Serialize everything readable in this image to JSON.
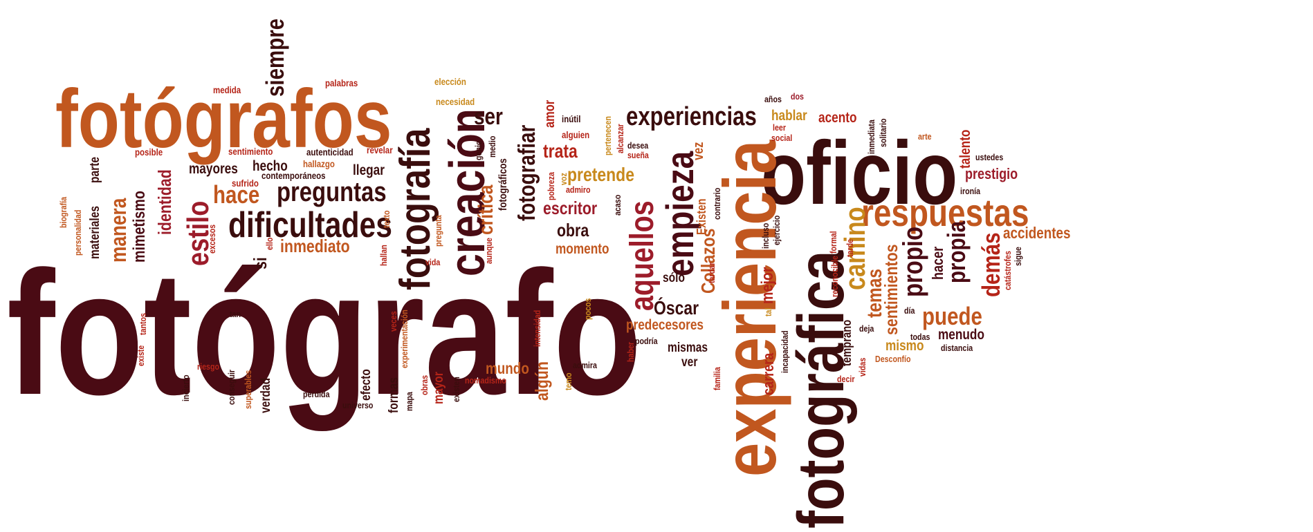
{
  "palette": {
    "dark_maroon": "#4a0b14",
    "brown": "#3a0d0d",
    "burnt_orange": "#c1571f",
    "red": "#b52418",
    "gold": "#c8891c",
    "dark_red": "#7a1a1a",
    "crimson": "#9c1c2a"
  },
  "words": [
    {
      "text": "fotógrafo",
      "color": "dark_maroon"
    },
    {
      "text": "fotógrafos",
      "color": "burnt_orange"
    },
    {
      "text": "oficio",
      "color": "brown"
    },
    {
      "text": "experiencia",
      "color": "burnt_orange"
    },
    {
      "text": "fotográfica",
      "color": "brown"
    },
    {
      "text": "fotografía",
      "color": "brown"
    },
    {
      "text": "creación",
      "color": "dark_maroon"
    },
    {
      "text": "respuestas",
      "color": "burnt_orange"
    },
    {
      "text": "dificultades",
      "color": "brown"
    },
    {
      "text": "empieza",
      "color": "dark_maroon"
    },
    {
      "text": "aquellos",
      "color": "crimson"
    },
    {
      "text": "experiencias",
      "color": "brown"
    },
    {
      "text": "preguntas",
      "color": "brown"
    },
    {
      "text": "siempre",
      "color": "brown"
    },
    {
      "text": "estilo",
      "color": "crimson"
    },
    {
      "text": "camino",
      "color": "gold"
    },
    {
      "text": "propio",
      "color": "dark_maroon"
    },
    {
      "text": "propia",
      "color": "dark_maroon"
    },
    {
      "text": "demás",
      "color": "red"
    },
    {
      "text": "puede",
      "color": "burnt_orange"
    },
    {
      "text": "manera",
      "color": "burnt_orange"
    },
    {
      "text": "hace",
      "color": "burnt_orange"
    },
    {
      "text": "inmediato",
      "color": "burnt_orange"
    },
    {
      "text": "ser",
      "color": "brown"
    },
    {
      "text": "fotografiar",
      "color": "brown"
    },
    {
      "text": "crítica",
      "color": "burnt_orange"
    },
    {
      "text": "identidad",
      "color": "crimson"
    },
    {
      "text": "mimetismo",
      "color": "dark_maroon"
    },
    {
      "text": "Óscar",
      "color": "brown"
    },
    {
      "text": "Collazos",
      "color": "burnt_orange"
    },
    {
      "text": "escritor",
      "color": "crimson"
    },
    {
      "text": "pretende",
      "color": "gold"
    },
    {
      "text": "obra",
      "color": "brown"
    },
    {
      "text": "trata",
      "color": "red"
    },
    {
      "text": "momento",
      "color": "burnt_orange"
    },
    {
      "text": "predecesores",
      "color": "burnt_orange"
    },
    {
      "text": "sentimientos",
      "color": "burnt_orange"
    },
    {
      "text": "temas",
      "color": "burnt_orange"
    },
    {
      "text": "hablar",
      "color": "gold"
    },
    {
      "text": "acento",
      "color": "red"
    },
    {
      "text": "prestigio",
      "color": "crimson"
    },
    {
      "text": "accidentes",
      "color": "burnt_orange"
    },
    {
      "text": "algún",
      "color": "burnt_orange"
    },
    {
      "text": "mundo",
      "color": "burnt_orange"
    },
    {
      "text": "mejor",
      "color": "red"
    },
    {
      "text": "carrera",
      "color": "red"
    },
    {
      "text": "menudo",
      "color": "dark_maroon"
    },
    {
      "text": "mismo",
      "color": "gold"
    },
    {
      "text": "vez",
      "color": "burnt_orange"
    },
    {
      "text": "hacer",
      "color": "dark_maroon"
    },
    {
      "text": "talento",
      "color": "red"
    },
    {
      "text": "mayores",
      "color": "brown"
    },
    {
      "text": "hecho",
      "color": "brown"
    },
    {
      "text": "llegar",
      "color": "brown"
    },
    {
      "text": "si",
      "color": "brown"
    },
    {
      "text": "materiales",
      "color": "brown"
    },
    {
      "text": "parte",
      "color": "brown"
    },
    {
      "text": "amor",
      "color": "red"
    },
    {
      "text": "mismas",
      "color": "brown"
    },
    {
      "text": "ver",
      "color": "brown"
    },
    {
      "text": "sólo",
      "color": "brown"
    },
    {
      "text": "Existen",
      "color": "burnt_orange"
    },
    {
      "text": "formas",
      "color": "brown"
    },
    {
      "text": "mayor",
      "color": "red"
    },
    {
      "text": "efecto",
      "color": "brown"
    },
    {
      "text": "verdad",
      "color": "brown"
    },
    {
      "text": "temprano",
      "color": "brown"
    },
    {
      "text": "fotográficos",
      "color": "brown"
    },
    {
      "text": "medida",
      "color": "red"
    },
    {
      "text": "palabras",
      "color": "red"
    },
    {
      "text": "elección",
      "color": "gold"
    },
    {
      "text": "necesidad",
      "color": "gold"
    },
    {
      "text": "inútil",
      "color": "brown"
    },
    {
      "text": "alguien",
      "color": "red"
    },
    {
      "text": "posible",
      "color": "red"
    },
    {
      "text": "sentimiento",
      "color": "red"
    },
    {
      "text": "autenticidad",
      "color": "brown"
    },
    {
      "text": "revelar",
      "color": "red"
    },
    {
      "text": "genio",
      "color": "brown"
    },
    {
      "text": "medio",
      "color": "brown"
    },
    {
      "text": "hallazgo",
      "color": "burnt_orange"
    },
    {
      "text": "contemporáneos",
      "color": "brown"
    },
    {
      "text": "sufrido",
      "color": "red"
    },
    {
      "text": "biografía",
      "color": "burnt_orange"
    },
    {
      "text": "personalidad",
      "color": "burnt_orange"
    },
    {
      "text": "excesos",
      "color": "red"
    },
    {
      "text": "ello",
      "color": "red"
    },
    {
      "text": "texto",
      "color": "burnt_orange"
    },
    {
      "text": "hallan",
      "color": "red"
    },
    {
      "text": "vida",
      "color": "red"
    },
    {
      "text": "pregunta",
      "color": "burnt_orange"
    },
    {
      "text": "aunque",
      "color": "red"
    },
    {
      "text": "pobreza",
      "color": "red"
    },
    {
      "text": "voz",
      "color": "gold"
    },
    {
      "text": "admiro",
      "color": "red"
    },
    {
      "text": "acaso",
      "color": "brown"
    },
    {
      "text": "pertenecen",
      "color": "gold"
    },
    {
      "text": "alcanzar",
      "color": "red"
    },
    {
      "text": "desea",
      "color": "brown"
    },
    {
      "text": "sueña",
      "color": "red"
    },
    {
      "text": "tardar",
      "color": "red"
    },
    {
      "text": "contrario",
      "color": "brown"
    },
    {
      "text": "ejercicio",
      "color": "brown"
    },
    {
      "text": "incluso",
      "color": "brown"
    },
    {
      "text": "formal",
      "color": "red"
    },
    {
      "text": "reconocible",
      "color": "red"
    },
    {
      "text": "tarde",
      "color": "red"
    },
    {
      "text": "años",
      "color": "brown"
    },
    {
      "text": "dos",
      "color": "crimson"
    },
    {
      "text": "leer",
      "color": "red"
    },
    {
      "text": "social",
      "color": "red"
    },
    {
      "text": "inmediata",
      "color": "brown"
    },
    {
      "text": "solitario",
      "color": "brown"
    },
    {
      "text": "arte",
      "color": "burnt_orange"
    },
    {
      "text": "ustedes",
      "color": "brown"
    },
    {
      "text": "ironía",
      "color": "brown"
    },
    {
      "text": "sigue",
      "color": "brown"
    },
    {
      "text": "catástrofes",
      "color": "red"
    },
    {
      "text": "día",
      "color": "brown"
    },
    {
      "text": "deja",
      "color": "brown"
    },
    {
      "text": "todas",
      "color": "brown"
    },
    {
      "text": "distancia",
      "color": "brown"
    },
    {
      "text": "Desconfío",
      "color": "burnt_orange"
    },
    {
      "text": "vidas",
      "color": "red"
    },
    {
      "text": "decir",
      "color": "red"
    },
    {
      "text": "incapacidad",
      "color": "brown"
    },
    {
      "text": "tal",
      "color": "gold"
    },
    {
      "text": "familia",
      "color": "red"
    },
    {
      "text": "haber",
      "color": "red"
    },
    {
      "text": "podría",
      "color": "brown"
    },
    {
      "text": "admira",
      "color": "brown"
    },
    {
      "text": "temo",
      "color": "gold"
    },
    {
      "text": "pocos",
      "color": "gold"
    },
    {
      "text": "intensidad",
      "color": "red"
    },
    {
      "text": "nomadismo",
      "color": "red"
    },
    {
      "text": "existen",
      "color": "brown"
    },
    {
      "text": "obras",
      "color": "red"
    },
    {
      "text": "mapa",
      "color": "brown"
    },
    {
      "text": "experimentación",
      "color": "burnt_orange"
    },
    {
      "text": "veces",
      "color": "red"
    },
    {
      "text": "universo",
      "color": "brown"
    },
    {
      "text": "pérdida",
      "color": "brown"
    },
    {
      "text": "superables",
      "color": "burnt_orange"
    },
    {
      "text": "conseguir",
      "color": "brown"
    },
    {
      "text": "riesgo",
      "color": "red"
    },
    {
      "text": "incierto",
      "color": "brown"
    },
    {
      "text": "existe",
      "color": "red"
    },
    {
      "text": "tantos",
      "color": "red"
    },
    {
      "text": "tan",
      "color": "brown"
    }
  ]
}
